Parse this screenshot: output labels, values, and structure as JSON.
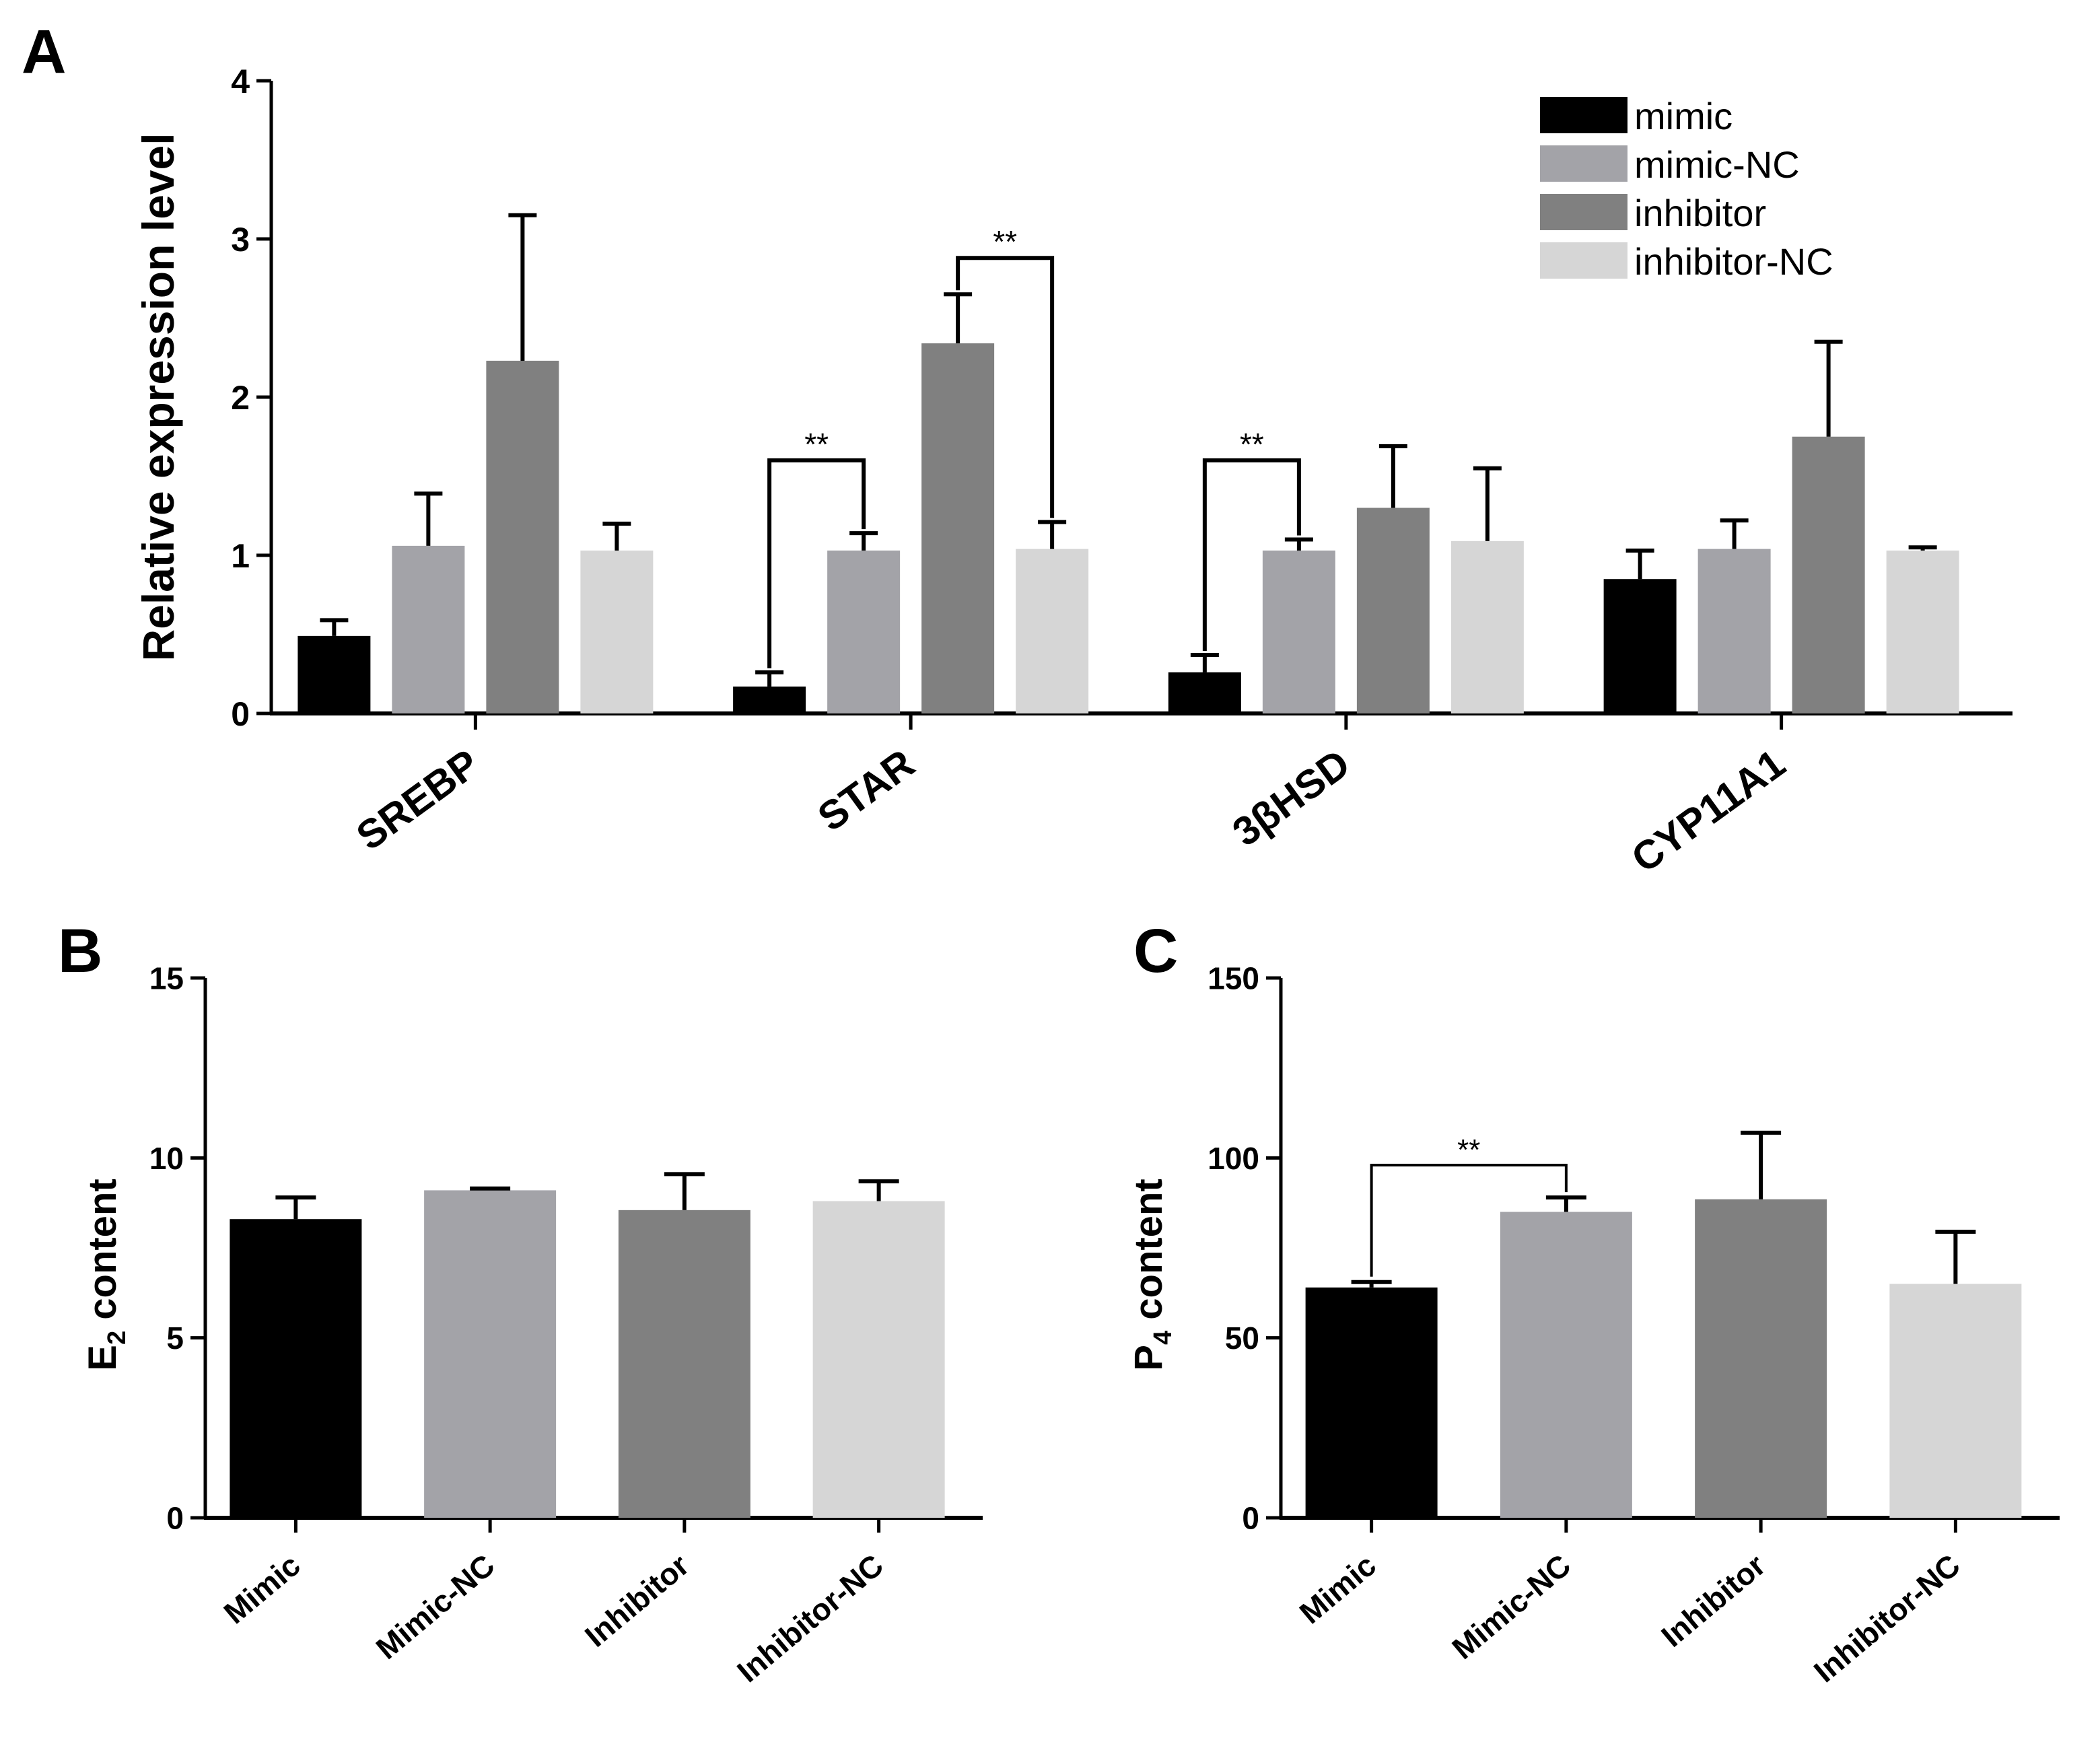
{
  "colors": {
    "mimic": "#000000",
    "mimic_nc": "#a3a3a8",
    "inhibitor": "#808080",
    "inhibitor_nc": "#d6d6d6",
    "axis": "#000000"
  },
  "chart_data": [
    {
      "panel": "A",
      "type": "bar",
      "title": "",
      "xlabel": "",
      "ylabel": "Relative expression level",
      "ylim": [
        0,
        4
      ],
      "yticks": [
        "0",
        "1",
        "2",
        "3",
        "4"
      ],
      "categories": [
        "SREBP",
        "STAR",
        "3βHSD",
        "CYP11A1"
      ],
      "legend": [
        "mimic",
        "mimic-NC",
        "inhibitor",
        "inhibitor-NC"
      ],
      "legend_position": "top-right",
      "series": [
        {
          "name": "mimic",
          "color": "#000000",
          "values": [
            0.49,
            0.17,
            0.26,
            0.85
          ],
          "errors": [
            0.1,
            0.09,
            0.11,
            0.18
          ]
        },
        {
          "name": "mimic-NC",
          "color": "#a3a3a8",
          "values": [
            1.06,
            1.03,
            1.03,
            1.04
          ],
          "errors": [
            0.33,
            0.11,
            0.07,
            0.18
          ]
        },
        {
          "name": "inhibitor",
          "color": "#808080",
          "values": [
            2.23,
            2.34,
            1.3,
            1.75
          ],
          "errors": [
            0.92,
            0.31,
            0.39,
            0.6
          ]
        },
        {
          "name": "inhibitor-NC",
          "color": "#d6d6d6",
          "values": [
            1.03,
            1.04,
            1.09,
            1.03
          ],
          "errors": [
            0.17,
            0.17,
            0.46,
            0.02
          ]
        }
      ],
      "significance": [
        {
          "category": "STAR",
          "from": "mimic",
          "to": "mimic-NC",
          "label": "**",
          "height": 1.6
        },
        {
          "category": "STAR",
          "from": "inhibitor",
          "to": "inhibitor-NC",
          "label": "**",
          "height": 2.88
        },
        {
          "category": "3βHSD",
          "from": "mimic",
          "to": "mimic-NC",
          "label": "**",
          "height": 1.6
        }
      ]
    },
    {
      "panel": "B",
      "type": "bar",
      "title": "",
      "xlabel": "",
      "ylabel_main": "E",
      "ylabel_sub": "2",
      "ylabel_rest": " content",
      "ylim": [
        0,
        15
      ],
      "yticks": [
        "0",
        "5",
        "10",
        "15"
      ],
      "categories": [
        "Mimic",
        "Mimic-NC",
        "Inhibitor",
        "Inhibitor-NC"
      ],
      "values": [
        8.3,
        9.1,
        8.55,
        8.8
      ],
      "errors": [
        0.6,
        0.05,
        1.0,
        0.55
      ],
      "colors": [
        "#000000",
        "#a3a3a8",
        "#808080",
        "#d6d6d6"
      ],
      "significance": []
    },
    {
      "panel": "C",
      "type": "bar",
      "title": "",
      "xlabel": "",
      "ylabel_main": "P",
      "ylabel_sub": "4",
      "ylabel_rest": " content",
      "ylim": [
        0,
        150
      ],
      "yticks": [
        "0",
        "50",
        "100",
        "150"
      ],
      "categories": [
        "Mimic",
        "Mimic-NC",
        "Inhibitor",
        "Inhibitor-NC"
      ],
      "values": [
        64,
        85,
        88.5,
        65
      ],
      "errors": [
        1.5,
        4,
        18.5,
        14.5
      ],
      "colors": [
        "#000000",
        "#a3a3a8",
        "#808080",
        "#d6d6d6"
      ],
      "significance": [
        {
          "from": "Mimic",
          "to": "Mimic-NC",
          "label": "**",
          "height": 98
        }
      ]
    }
  ]
}
